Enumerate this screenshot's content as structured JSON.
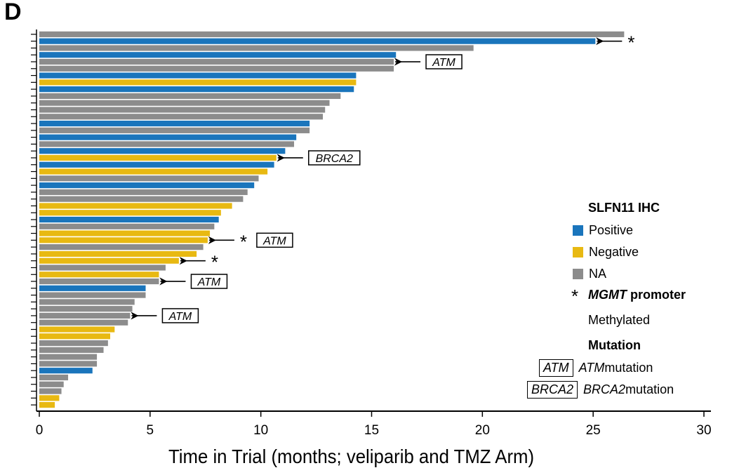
{
  "panel_label": "D",
  "colors": {
    "positive": "#1a75bc",
    "negative": "#e8b912",
    "na": "#8c8c8c"
  },
  "chart_data": {
    "type": "bar",
    "orientation": "horizontal",
    "title": "",
    "xlabel": "Time in Trial (months; veliparib and TMZ Arm)",
    "ylabel": "",
    "xlim": [
      0,
      30
    ],
    "xticks": [
      0,
      5,
      10,
      15,
      20,
      25,
      30
    ],
    "xtick_labels": [
      "0",
      "5",
      "10",
      "15",
      "20",
      "25",
      "30"
    ],
    "grid": false,
    "legend_position": "right",
    "series_categories": [
      "Positive",
      "Negative",
      "NA"
    ],
    "bars": [
      {
        "value": 26.4,
        "status": "NA"
      },
      {
        "value": 25.1,
        "status": "Positive",
        "mgmt": true
      },
      {
        "value": 19.6,
        "status": "NA"
      },
      {
        "value": 16.1,
        "status": "Positive"
      },
      {
        "value": 16.0,
        "status": "NA",
        "mutation": "ATM"
      },
      {
        "value": 16.0,
        "status": "NA"
      },
      {
        "value": 14.3,
        "status": "Positive"
      },
      {
        "value": 14.3,
        "status": "Negative"
      },
      {
        "value": 14.2,
        "status": "Positive"
      },
      {
        "value": 13.6,
        "status": "NA"
      },
      {
        "value": 13.1,
        "status": "NA"
      },
      {
        "value": 12.9,
        "status": "NA"
      },
      {
        "value": 12.8,
        "status": "NA"
      },
      {
        "value": 12.2,
        "status": "Positive"
      },
      {
        "value": 12.2,
        "status": "NA"
      },
      {
        "value": 11.6,
        "status": "Positive"
      },
      {
        "value": 11.5,
        "status": "NA"
      },
      {
        "value": 11.1,
        "status": "Positive"
      },
      {
        "value": 10.7,
        "status": "Negative",
        "mutation": "BRCA2"
      },
      {
        "value": 10.6,
        "status": "Positive"
      },
      {
        "value": 10.3,
        "status": "Negative"
      },
      {
        "value": 9.9,
        "status": "NA"
      },
      {
        "value": 9.7,
        "status": "Positive"
      },
      {
        "value": 9.4,
        "status": "NA"
      },
      {
        "value": 9.2,
        "status": "NA"
      },
      {
        "value": 8.7,
        "status": "Negative"
      },
      {
        "value": 8.2,
        "status": "Negative"
      },
      {
        "value": 8.1,
        "status": "Positive"
      },
      {
        "value": 7.9,
        "status": "NA"
      },
      {
        "value": 7.7,
        "status": "Negative"
      },
      {
        "value": 7.6,
        "status": "Negative",
        "mgmt": true,
        "mutation": "ATM"
      },
      {
        "value": 7.4,
        "status": "NA"
      },
      {
        "value": 7.1,
        "status": "Negative"
      },
      {
        "value": 6.3,
        "status": "Negative",
        "mgmt": true
      },
      {
        "value": 5.7,
        "status": "NA"
      },
      {
        "value": 5.4,
        "status": "Negative"
      },
      {
        "value": 5.4,
        "status": "NA",
        "mutation": "ATM"
      },
      {
        "value": 4.8,
        "status": "Positive"
      },
      {
        "value": 4.8,
        "status": "NA"
      },
      {
        "value": 4.3,
        "status": "NA"
      },
      {
        "value": 4.2,
        "status": "NA"
      },
      {
        "value": 4.1,
        "status": "NA",
        "mutation": "ATM"
      },
      {
        "value": 4.0,
        "status": "NA"
      },
      {
        "value": 3.4,
        "status": "Negative"
      },
      {
        "value": 3.2,
        "status": "Negative"
      },
      {
        "value": 3.1,
        "status": "NA"
      },
      {
        "value": 2.9,
        "status": "NA"
      },
      {
        "value": 2.6,
        "status": "NA"
      },
      {
        "value": 2.6,
        "status": "NA"
      },
      {
        "value": 2.4,
        "status": "Positive"
      },
      {
        "value": 1.3,
        "status": "NA"
      },
      {
        "value": 1.1,
        "status": "NA"
      },
      {
        "value": 1.0,
        "status": "NA"
      },
      {
        "value": 0.9,
        "status": "Negative"
      },
      {
        "value": 0.7,
        "status": "Negative"
      }
    ]
  },
  "legend": {
    "title": "SLFN11 IHC",
    "positive": "Positive",
    "negative": "Negative",
    "na": "NA",
    "star": "*",
    "mgmt_italic": "MGMT",
    "mgmt_rest": " promoter",
    "methylated": "Methylated",
    "mutation_title": "Mutation",
    "atm_box": "ATM",
    "atm_italic": "ATM",
    "atm_rest": " mutation",
    "brca2_box": "BRCA2",
    "brca2_italic": "BRCA2",
    "brca2_rest": " mutation"
  }
}
